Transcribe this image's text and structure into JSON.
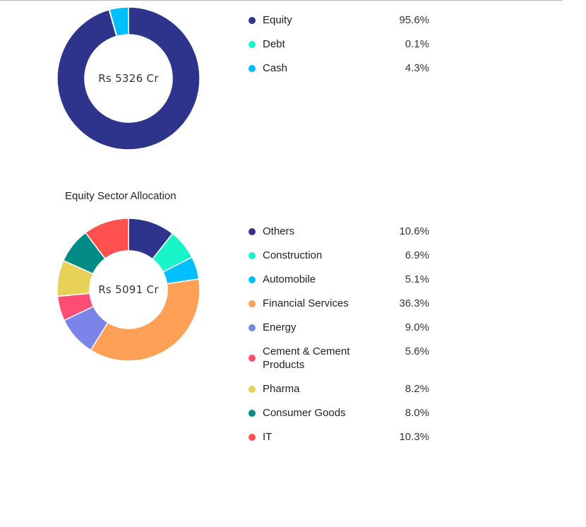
{
  "asset_allocation": {
    "center_label": "Rs 5326 Cr",
    "items": [
      {
        "label": "Equity",
        "value": "95.6%",
        "pct": 95.6,
        "color": "#2e338c"
      },
      {
        "label": "Debt",
        "value": "0.1%",
        "pct": 0.1,
        "color": "#18f5c9"
      },
      {
        "label": "Cash",
        "value": "4.3%",
        "pct": 4.3,
        "color": "#00bfff"
      }
    ]
  },
  "sector_allocation": {
    "title": "Equity Sector Allocation",
    "center_label": "Rs 5091 Cr",
    "items": [
      {
        "label": "Others",
        "value": "10.6%",
        "pct": 10.6,
        "color": "#2e338c"
      },
      {
        "label": "Construction",
        "value": "6.9%",
        "pct": 6.9,
        "color": "#18f5c9"
      },
      {
        "label": "Automobile",
        "value": "5.1%",
        "pct": 5.1,
        "color": "#00bfff"
      },
      {
        "label": "Financial Services",
        "value": "36.3%",
        "pct": 36.3,
        "color": "#ffa057"
      },
      {
        "label": "Energy",
        "value": "9.0%",
        "pct": 9.0,
        "color": "#7b84e8"
      },
      {
        "label": "Cement & Cement Products",
        "value": "5.6%",
        "pct": 5.6,
        "color": "#ff4d73"
      },
      {
        "label": "Pharma",
        "value": "8.2%",
        "pct": 8.2,
        "color": "#e8d159"
      },
      {
        "label": "Consumer Goods",
        "value": "8.0%",
        "pct": 8.0,
        "color": "#008b87"
      },
      {
        "label": "IT",
        "value": "10.3%",
        "pct": 10.3,
        "color": "#ff5050"
      }
    ]
  },
  "chart_data": [
    {
      "type": "pie",
      "title": "",
      "center_label": "Rs 5326 Cr",
      "categories": [
        "Equity",
        "Debt",
        "Cash"
      ],
      "values": [
        95.6,
        0.1,
        4.3
      ],
      "colors": [
        "#2e338c",
        "#18f5c9",
        "#00bfff"
      ],
      "legend_position": "right",
      "donut": true
    },
    {
      "type": "pie",
      "title": "Equity Sector Allocation",
      "center_label": "Rs 5091 Cr",
      "categories": [
        "Others",
        "Construction",
        "Automobile",
        "Financial Services",
        "Energy",
        "Cement & Cement Products",
        "Pharma",
        "Consumer Goods",
        "IT"
      ],
      "values": [
        10.6,
        6.9,
        5.1,
        36.3,
        9.0,
        5.6,
        8.2,
        8.0,
        10.3
      ],
      "colors": [
        "#2e338c",
        "#18f5c9",
        "#00bfff",
        "#ffa057",
        "#7b84e8",
        "#ff4d73",
        "#e8d159",
        "#008b87",
        "#ff5050"
      ],
      "legend_position": "right",
      "donut": true
    }
  ]
}
